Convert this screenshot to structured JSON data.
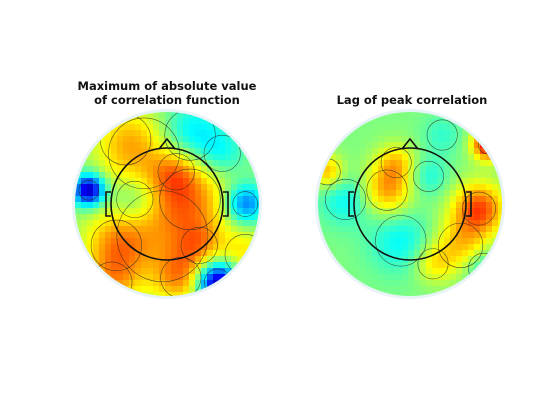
{
  "chart_data": [
    {
      "type": "heatmap",
      "title_line1": "Maximum of absolute value",
      "title_line2": "of correlation function",
      "colormap": "jet",
      "background": "#9ef39c",
      "blobs": [
        {
          "x": -0.05,
          "y": -0.35,
          "v": 0.3,
          "s": 0.45
        },
        {
          "x": 0.25,
          "y": 0.05,
          "v": 0.35,
          "s": 0.3
        },
        {
          "x": -0.25,
          "y": 0.55,
          "v": 0.25,
          "s": 0.35
        },
        {
          "x": 0.25,
          "y": 0.75,
          "v": -0.35,
          "s": 0.25
        },
        {
          "x": -0.85,
          "y": 0.15,
          "v": -0.95,
          "s": 0.12
        },
        {
          "x": 0.55,
          "y": -0.85,
          "v": -1.0,
          "s": 0.16
        },
        {
          "x": -0.45,
          "y": 0.7,
          "v": 0.2,
          "s": 0.25
        },
        {
          "x": 0.85,
          "y": 0.0,
          "v": -0.55,
          "s": 0.15
        },
        {
          "x": 0.1,
          "y": 0.35,
          "v": 0.25,
          "s": 0.18
        },
        {
          "x": -0.55,
          "y": -0.45,
          "v": 0.35,
          "s": 0.25
        },
        {
          "x": -0.6,
          "y": -0.85,
          "v": 0.3,
          "s": 0.2
        },
        {
          "x": 0.15,
          "y": -0.8,
          "v": 0.35,
          "s": 0.2
        },
        {
          "x": 0.85,
          "y": -0.55,
          "v": 0.25,
          "s": 0.2
        },
        {
          "x": 0.35,
          "y": -0.45,
          "v": 0.25,
          "s": 0.18
        },
        {
          "x": -0.35,
          "y": 0.05,
          "v": -0.25,
          "s": 0.18
        },
        {
          "x": 0.6,
          "y": 0.55,
          "v": -0.2,
          "s": 0.18
        }
      ]
    },
    {
      "type": "heatmap",
      "title": "Lag of peak correlation",
      "colormap": "jet",
      "background": "#a6f99a",
      "blobs": [
        {
          "x": 0.85,
          "y": 0.65,
          "v": 0.8,
          "s": 0.12
        },
        {
          "x": 0.75,
          "y": -0.05,
          "v": 0.6,
          "s": 0.2
        },
        {
          "x": 0.55,
          "y": -0.45,
          "v": 0.35,
          "s": 0.22
        },
        {
          "x": -0.9,
          "y": 0.35,
          "v": 0.4,
          "s": 0.13
        },
        {
          "x": -0.25,
          "y": 0.15,
          "v": 0.45,
          "s": 0.2
        },
        {
          "x": -0.15,
          "y": 0.45,
          "v": 0.3,
          "s": 0.15
        },
        {
          "x": 0.25,
          "y": -0.65,
          "v": 0.25,
          "s": 0.15
        },
        {
          "x": -0.7,
          "y": 0.05,
          "v": -0.25,
          "s": 0.2
        },
        {
          "x": -0.1,
          "y": -0.4,
          "v": -0.25,
          "s": 0.25
        },
        {
          "x": 0.2,
          "y": 0.3,
          "v": -0.2,
          "s": 0.15
        },
        {
          "x": 0.8,
          "y": -0.7,
          "v": -0.25,
          "s": 0.15
        },
        {
          "x": 0.35,
          "y": 0.75,
          "v": -0.15,
          "s": 0.15
        }
      ]
    }
  ]
}
